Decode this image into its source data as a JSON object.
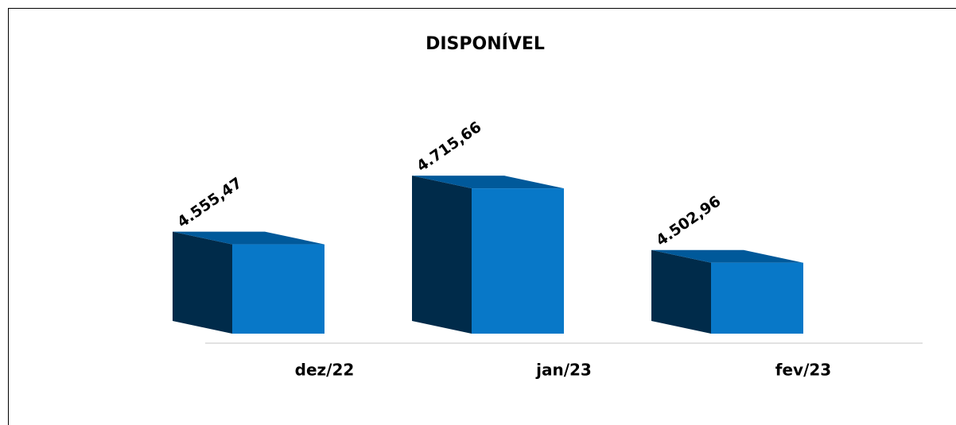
{
  "chart_data": {
    "type": "bar3d",
    "title": "DISPONÍVEL",
    "categories": [
      "dez/22",
      "jan/23",
      "fev/23"
    ],
    "values": [
      4555.47,
      4715.66,
      4502.96
    ],
    "value_labels": [
      "4.555,47",
      "4.715,66",
      "4.502,96"
    ],
    "color": "#0878c8",
    "ylim": [
      4300,
      4800
    ]
  }
}
